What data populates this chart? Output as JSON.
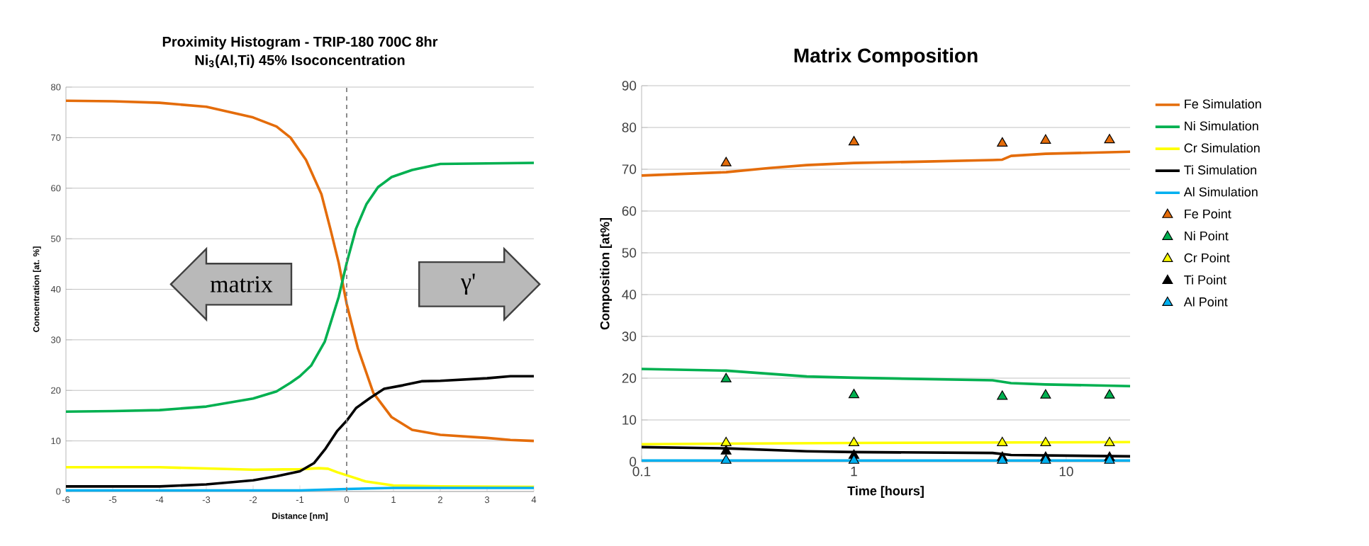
{
  "chart_data": [
    {
      "type": "line",
      "title": "Proximity Histogram - TRIP-180 700C 8hr",
      "subtitle": "Ni$_{3}$(Al,Ti) 45% Isoconcentration",
      "xlabel": "Distance [nm]",
      "ylabel": "Concentration [at. %]",
      "xlim": [
        -6,
        4
      ],
      "xticks": [
        -6,
        -5,
        -4,
        -3,
        -2,
        -1,
        0,
        1,
        2,
        3,
        4
      ],
      "ylim": [
        0,
        80
      ],
      "yticks": [
        0,
        10,
        20,
        30,
        40,
        50,
        60,
        70,
        80
      ],
      "grid": "y",
      "ref_lines": [
        {
          "axis": "x",
          "value": 0,
          "color": "#808080",
          "line_style": "dashed"
        }
      ],
      "annotations": [
        "matrix",
        "γ'"
      ],
      "series": [
        {
          "color": "#e46c0a",
          "x": [
            -6,
            -5,
            -4,
            -3,
            -2,
            -1.5,
            -1.2,
            -0.87,
            -0.54,
            -0.35,
            -0.17,
            0,
            0.24,
            0.57,
            0.96,
            1.4,
            2,
            3,
            3.5,
            4
          ],
          "values": [
            77.3,
            77.2,
            76.9,
            76.1,
            74,
            72.2,
            70,
            65.6,
            58.8,
            52,
            45.2,
            37.1,
            28.3,
            19.5,
            14.7,
            12.2,
            11.2,
            10.6,
            10.2,
            10
          ]
        },
        {
          "color": "#00b050",
          "x": [
            -6,
            -5,
            -4,
            -3,
            -2,
            -1.5,
            -1.2,
            -1,
            -0.76,
            -0.47,
            -0.17,
            0,
            0.2,
            0.42,
            0.67,
            0.96,
            1.4,
            2,
            3,
            4
          ],
          "values": [
            15.8,
            15.9,
            16.1,
            16.8,
            18.4,
            19.8,
            21.5,
            22.8,
            24.9,
            29.6,
            38.5,
            45.2,
            52,
            56.8,
            60.2,
            62.2,
            63.6,
            64.8,
            64.9,
            65
          ]
        },
        {
          "color": "#ffff00",
          "x": [
            -6,
            -4,
            -2,
            -1,
            -0.6,
            -0.4,
            -0.2,
            0,
            0.4,
            1,
            2,
            4
          ],
          "values": [
            4.8,
            4.8,
            4.3,
            4.4,
            4.6,
            4.5,
            3.8,
            3.2,
            2,
            1.2,
            1,
            0.9
          ]
        },
        {
          "color": "#000000",
          "x": [
            -6,
            -4,
            -3,
            -2,
            -1.5,
            -1,
            -0.7,
            -0.45,
            -0.2,
            0,
            0.2,
            0.5,
            0.8,
            1.2,
            1.6,
            2,
            3,
            3.5,
            4
          ],
          "values": [
            1,
            1,
            1.4,
            2.2,
            3,
            4,
            5.6,
            8.5,
            12,
            14,
            16.5,
            18.5,
            20.3,
            21,
            21.8,
            21.9,
            22.4,
            22.8,
            22.8
          ]
        },
        {
          "color": "#00b0f0",
          "x": [
            -6,
            -1,
            0,
            1,
            4
          ],
          "values": [
            0.2,
            0.2,
            0.5,
            0.7,
            0.7
          ]
        }
      ]
    },
    {
      "type": "line",
      "title": "Matrix Composition",
      "xlabel": "Time [hours]",
      "ylabel": "Composition [at%]",
      "log": "x",
      "xlim": [
        0.1,
        20
      ],
      "xticks": [
        0.1,
        1,
        10
      ],
      "ylim": [
        0,
        90
      ],
      "yticks": [
        0,
        10,
        20,
        30,
        40,
        50,
        60,
        70,
        80,
        90
      ],
      "grid": "y",
      "legend": "right",
      "series": [
        {
          "name": "Fe Simulation",
          "color": "#e46c0a",
          "x": [
            0.1,
            0.25,
            0.4,
            0.6,
            1,
            2,
            4.5,
            5,
            5.5,
            8,
            20
          ],
          "values": [
            68.5,
            69.3,
            70.3,
            71,
            71.5,
            71.8,
            72.2,
            72.3,
            73.2,
            73.7,
            74.2
          ]
        },
        {
          "name": "Ni Simulation",
          "color": "#00b050",
          "x": [
            0.1,
            0.25,
            0.6,
            1,
            4.5,
            5.5,
            8,
            20
          ],
          "values": [
            22.2,
            21.8,
            20.4,
            20.1,
            19.5,
            18.8,
            18.5,
            18.1
          ]
        },
        {
          "name": "Cr Simulation",
          "color": "#ffff00",
          "x": [
            0.1,
            1,
            20
          ],
          "values": [
            4.2,
            4.5,
            4.7
          ]
        },
        {
          "name": "Ti Simulation",
          "color": "#000000",
          "x": [
            0.1,
            0.25,
            0.6,
            1,
            4.5,
            5.5,
            20
          ],
          "values": [
            3.5,
            3.2,
            2.5,
            2.3,
            2.1,
            1.6,
            1.3
          ]
        },
        {
          "name": "Al Simulation",
          "color": "#00b0f0",
          "x": [
            0.1,
            20
          ],
          "values": [
            0.3,
            0.3
          ]
        },
        {
          "name": "Fe Point",
          "type": "scatter",
          "marker": "triangle",
          "color": "#e46c0a",
          "x": [
            0.25,
            1,
            5,
            8,
            16
          ],
          "values": [
            71.5,
            76.5,
            76.2,
            76.9,
            77
          ]
        },
        {
          "name": "Ni Point",
          "type": "scatter",
          "marker": "triangle",
          "color": "#00b050",
          "x": [
            0.25,
            1,
            5,
            8,
            16
          ],
          "values": [
            19.8,
            16,
            15.6,
            15.9,
            15.9
          ]
        },
        {
          "name": "Cr Point",
          "type": "scatter",
          "marker": "triangle",
          "color": "#ffff00",
          "x": [
            0.25,
            1,
            5,
            8,
            16
          ],
          "values": [
            4.5,
            4.5,
            4.5,
            4.5,
            4.5
          ]
        },
        {
          "name": "Ti Point",
          "type": "scatter",
          "marker": "triangle",
          "color": "#000000",
          "x": [
            0.25,
            1,
            5,
            8,
            16
          ],
          "values": [
            2.5,
            1.5,
            1,
            1,
            1
          ]
        },
        {
          "name": "Al Point",
          "type": "scatter",
          "marker": "triangle",
          "color": "#00b0f0",
          "x": [
            0.25,
            1,
            5,
            8,
            16
          ],
          "values": [
            0.3,
            0.3,
            0.3,
            0.3,
            0.3
          ]
        }
      ]
    }
  ]
}
